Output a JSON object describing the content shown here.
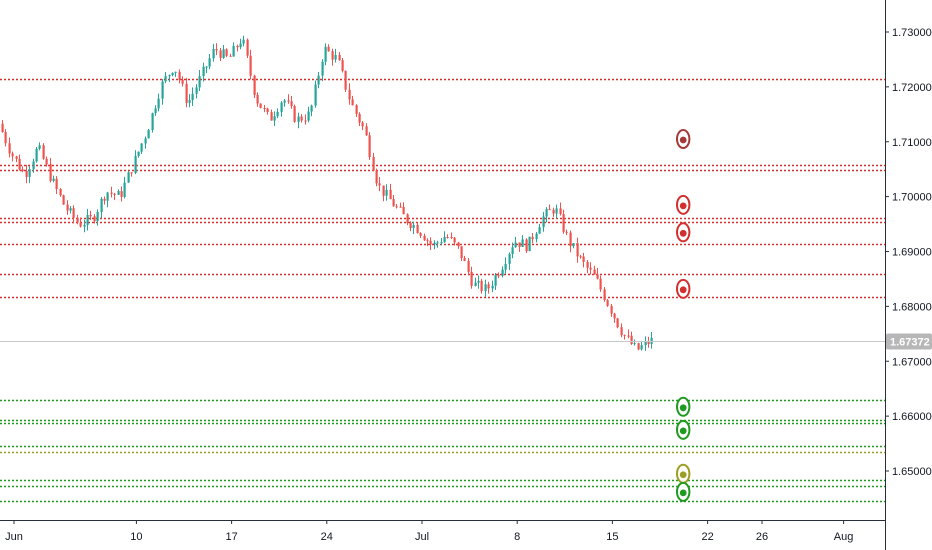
{
  "chart_data": {
    "type": "candlestick",
    "instrument": "",
    "colors": {
      "up": "#26a69a",
      "down": "#ef5350",
      "resistance": "#d32f2f",
      "support": "#1e9b1e",
      "support_alt": "#9e9d24",
      "marker_dark": "#a33a3a",
      "last_price_tag": "#b7b7b7",
      "last_price_line": "#c8c8c8",
      "axis_text": "#131722"
    },
    "y_axis": {
      "range": [
        1.644,
        1.733
      ],
      "ticks": [
        {
          "value": 1.73,
          "label": "1.73000"
        },
        {
          "value": 1.72,
          "label": "1.72000"
        },
        {
          "value": 1.71,
          "label": "1.71000"
        },
        {
          "value": 1.7,
          "label": "1.70000"
        },
        {
          "value": 1.69,
          "label": "1.69000"
        },
        {
          "value": 1.68,
          "label": "1.68000"
        },
        {
          "value": 1.67,
          "label": "1.67000"
        },
        {
          "value": 1.66,
          "label": "1.66000"
        },
        {
          "value": 1.65,
          "label": "1.65000"
        }
      ]
    },
    "x_axis": {
      "range": [
        "2019-05-31",
        "2019-08-04"
      ],
      "ticks": [
        {
          "date": "2019-06-01",
          "label": "Jun"
        },
        {
          "date": "2019-06-10",
          "label": "10"
        },
        {
          "date": "2019-06-17",
          "label": "17"
        },
        {
          "date": "2019-06-24",
          "label": "24"
        },
        {
          "date": "2019-07-01",
          "label": "Jul"
        },
        {
          "date": "2019-07-08",
          "label": "8"
        },
        {
          "date": "2019-07-15",
          "label": "15"
        },
        {
          "date": "2019-07-22",
          "label": "22"
        },
        {
          "date": "2019-07-26",
          "label": "26"
        },
        {
          "date": "2019-08-01",
          "label": "Aug"
        }
      ]
    },
    "last_price": {
      "value": 1.67372,
      "label": "1.67372"
    },
    "price_path": [
      [
        "2019-05-31",
        1.714
      ],
      [
        "2019-06-01",
        1.708
      ],
      [
        "2019-06-02",
        1.704
      ],
      [
        "2019-06-03",
        1.709
      ],
      [
        "2019-06-04",
        1.703
      ],
      [
        "2019-06-05",
        1.698
      ],
      [
        "2019-06-06",
        1.695
      ],
      [
        "2019-06-07",
        1.696
      ],
      [
        "2019-06-08",
        1.701
      ],
      [
        "2019-06-09",
        1.7
      ],
      [
        "2019-06-10",
        1.706
      ],
      [
        "2019-06-11",
        1.712
      ],
      [
        "2019-06-12",
        1.72
      ],
      [
        "2019-06-13",
        1.724
      ],
      [
        "2019-06-14",
        1.717
      ],
      [
        "2019-06-15",
        1.722
      ],
      [
        "2019-06-16",
        1.727
      ],
      [
        "2019-06-17",
        1.725
      ],
      [
        "2019-06-18",
        1.729
      ],
      [
        "2019-06-19",
        1.718
      ],
      [
        "2019-06-20",
        1.714
      ],
      [
        "2019-06-21",
        1.718
      ],
      [
        "2019-06-22",
        1.714
      ],
      [
        "2019-06-23",
        1.715
      ],
      [
        "2019-06-24",
        1.727
      ],
      [
        "2019-06-25",
        1.725
      ],
      [
        "2019-06-26",
        1.717
      ],
      [
        "2019-06-27",
        1.712
      ],
      [
        "2019-06-28",
        1.702
      ],
      [
        "2019-06-29",
        1.699
      ],
      [
        "2019-06-30",
        1.696
      ],
      [
        "2019-07-01",
        1.694
      ],
      [
        "2019-07-02",
        1.691
      ],
      [
        "2019-07-03",
        1.693
      ],
      [
        "2019-07-04",
        1.69
      ],
      [
        "2019-07-05",
        1.684
      ],
      [
        "2019-07-06",
        1.683
      ],
      [
        "2019-07-07",
        1.687
      ],
      [
        "2019-07-08",
        1.692
      ],
      [
        "2019-07-09",
        1.691
      ],
      [
        "2019-07-10",
        1.696
      ],
      [
        "2019-07-11",
        1.698
      ],
      [
        "2019-07-12",
        1.692
      ],
      [
        "2019-07-13",
        1.688
      ],
      [
        "2019-07-14",
        1.685
      ],
      [
        "2019-07-15",
        1.68
      ],
      [
        "2019-07-16",
        1.675
      ],
      [
        "2019-07-17",
        1.672
      ],
      [
        "2019-07-18",
        1.6737
      ]
    ],
    "level_lines": [
      {
        "value": 1.7215,
        "color": "resistance"
      },
      {
        "value": 1.7058,
        "color": "resistance"
      },
      {
        "value": 1.7048,
        "color": "resistance"
      },
      {
        "value": 1.6961,
        "color": "resistance"
      },
      {
        "value": 1.6953,
        "color": "resistance"
      },
      {
        "value": 1.6914,
        "color": "resistance"
      },
      {
        "value": 1.6859,
        "color": "resistance"
      },
      {
        "value": 1.6817,
        "color": "resistance"
      },
      {
        "value": 1.663,
        "color": "support"
      },
      {
        "value": 1.6593,
        "color": "support"
      },
      {
        "value": 1.6587,
        "color": "support"
      },
      {
        "value": 1.6546,
        "color": "support"
      },
      {
        "value": 1.6535,
        "color": "support_alt"
      },
      {
        "value": 1.6483,
        "color": "support"
      },
      {
        "value": 1.6473,
        "color": "support"
      },
      {
        "value": 1.6446,
        "color": "support"
      }
    ],
    "markers": [
      {
        "date": "2019-07-18",
        "value": 1.7105,
        "color": "marker_dark"
      },
      {
        "date": "2019-07-18",
        "value": 1.6985,
        "color": "resistance"
      },
      {
        "date": "2019-07-18",
        "value": 1.6935,
        "color": "resistance"
      },
      {
        "date": "2019-07-18",
        "value": 1.6832,
        "color": "resistance"
      },
      {
        "date": "2019-07-18",
        "value": 1.6617,
        "color": "support"
      },
      {
        "date": "2019-07-18",
        "value": 1.6575,
        "color": "support"
      },
      {
        "date": "2019-07-18",
        "value": 1.6495,
        "color": "support_alt"
      },
      {
        "date": "2019-07-18",
        "value": 1.6462,
        "color": "support"
      }
    ],
    "grid": false,
    "legend": "none"
  }
}
